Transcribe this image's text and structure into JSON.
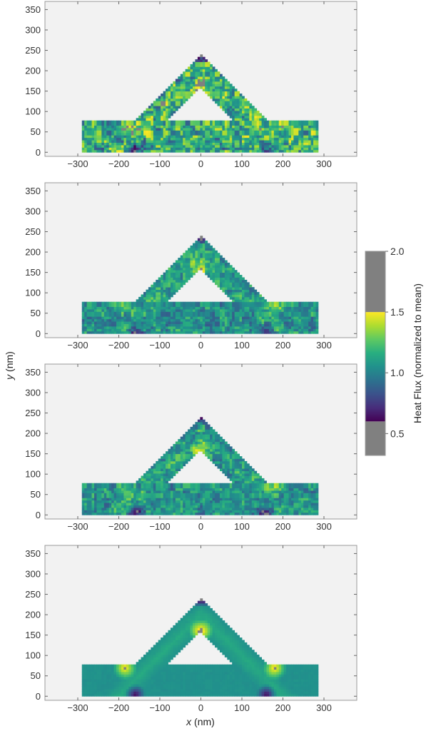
{
  "chart_data": [
    {
      "type": "heatmap",
      "panel": 1,
      "field_pattern": "noisy-high",
      "xlim": [
        -380,
        380
      ],
      "ylim": [
        -10,
        370
      ],
      "x_ticks": [
        -300,
        -200,
        -100,
        0,
        100,
        200,
        300
      ],
      "y_ticks": [
        0,
        50,
        100,
        150,
        200,
        250,
        300,
        350
      ],
      "x_tick_labels": [
        "−300",
        "−200",
        "−100",
        "0",
        "100",
        "200",
        "300"
      ],
      "y_tick_labels": [
        "0",
        "50",
        "100",
        "150",
        "200",
        "250",
        "300",
        "350"
      ],
      "grid": false
    },
    {
      "type": "heatmap",
      "panel": 2,
      "field_pattern": "noisy-medium",
      "xlim": [
        -380,
        380
      ],
      "ylim": [
        -10,
        370
      ],
      "x_ticks": [
        -300,
        -200,
        -100,
        0,
        100,
        200,
        300
      ],
      "y_ticks": [
        0,
        50,
        100,
        150,
        200,
        250,
        300,
        350
      ],
      "x_tick_labels": [
        "−300",
        "−200",
        "−100",
        "0",
        "100",
        "200",
        "300"
      ],
      "y_tick_labels": [
        "0",
        "50",
        "100",
        "150",
        "200",
        "250",
        "300",
        "350"
      ],
      "grid": false
    },
    {
      "type": "heatmap",
      "panel": 3,
      "field_pattern": "noisy-medium",
      "xlim": [
        -380,
        380
      ],
      "ylim": [
        -10,
        370
      ],
      "x_ticks": [
        -300,
        -200,
        -100,
        0,
        100,
        200,
        300
      ],
      "y_ticks": [
        0,
        50,
        100,
        150,
        200,
        250,
        300,
        350
      ],
      "x_tick_labels": [
        "−300",
        "−200",
        "−100",
        "0",
        "100",
        "200",
        "300"
      ],
      "y_tick_labels": [
        "0",
        "50",
        "100",
        "150",
        "200",
        "250",
        "300",
        "350"
      ],
      "grid": false
    },
    {
      "type": "heatmap",
      "panel": 4,
      "field_pattern": "smooth",
      "xlim": [
        -380,
        380
      ],
      "ylim": [
        -10,
        370
      ],
      "x_ticks": [
        -300,
        -200,
        -100,
        0,
        100,
        200,
        300
      ],
      "y_ticks": [
        0,
        50,
        100,
        150,
        200,
        250,
        300,
        350
      ],
      "x_tick_labels": [
        "−300",
        "−200",
        "−100",
        "0",
        "100",
        "200",
        "300"
      ],
      "y_tick_labels": [
        "0",
        "50",
        "100",
        "150",
        "200",
        "250",
        "300",
        "350"
      ],
      "grid": false
    }
  ],
  "shared": {
    "ylabel_var": "y",
    "ylabel_unit": " (nm)",
    "xlabel_var": "x",
    "xlabel_unit": " (nm)",
    "geometry": {
      "apex_x": 0,
      "apex_y": 260,
      "leg_width": 80,
      "bar_left": -290,
      "bar_right": 285,
      "bar_top": 80,
      "bar_bottom": 0
    }
  },
  "colorbar": {
    "label": "Heat Flux (normalized to mean)",
    "range": [
      0.32,
      2.0
    ],
    "under_threshold": 0.6,
    "over_threshold": 1.5,
    "ticks": [
      0.5,
      1.0,
      1.5,
      2.0
    ],
    "tick_labels": [
      "0.5",
      "1.0",
      "1.5",
      "2.0"
    ],
    "colormap": [
      "#440154",
      "#472d7b",
      "#3b528b",
      "#2c728e",
      "#21918c",
      "#28ae80",
      "#5ec962",
      "#addc30",
      "#fde725"
    ],
    "out_of_range_color": "#808080"
  },
  "colors": {
    "plot_background": "#f2f2f2",
    "frame": "#9a9a9a"
  }
}
